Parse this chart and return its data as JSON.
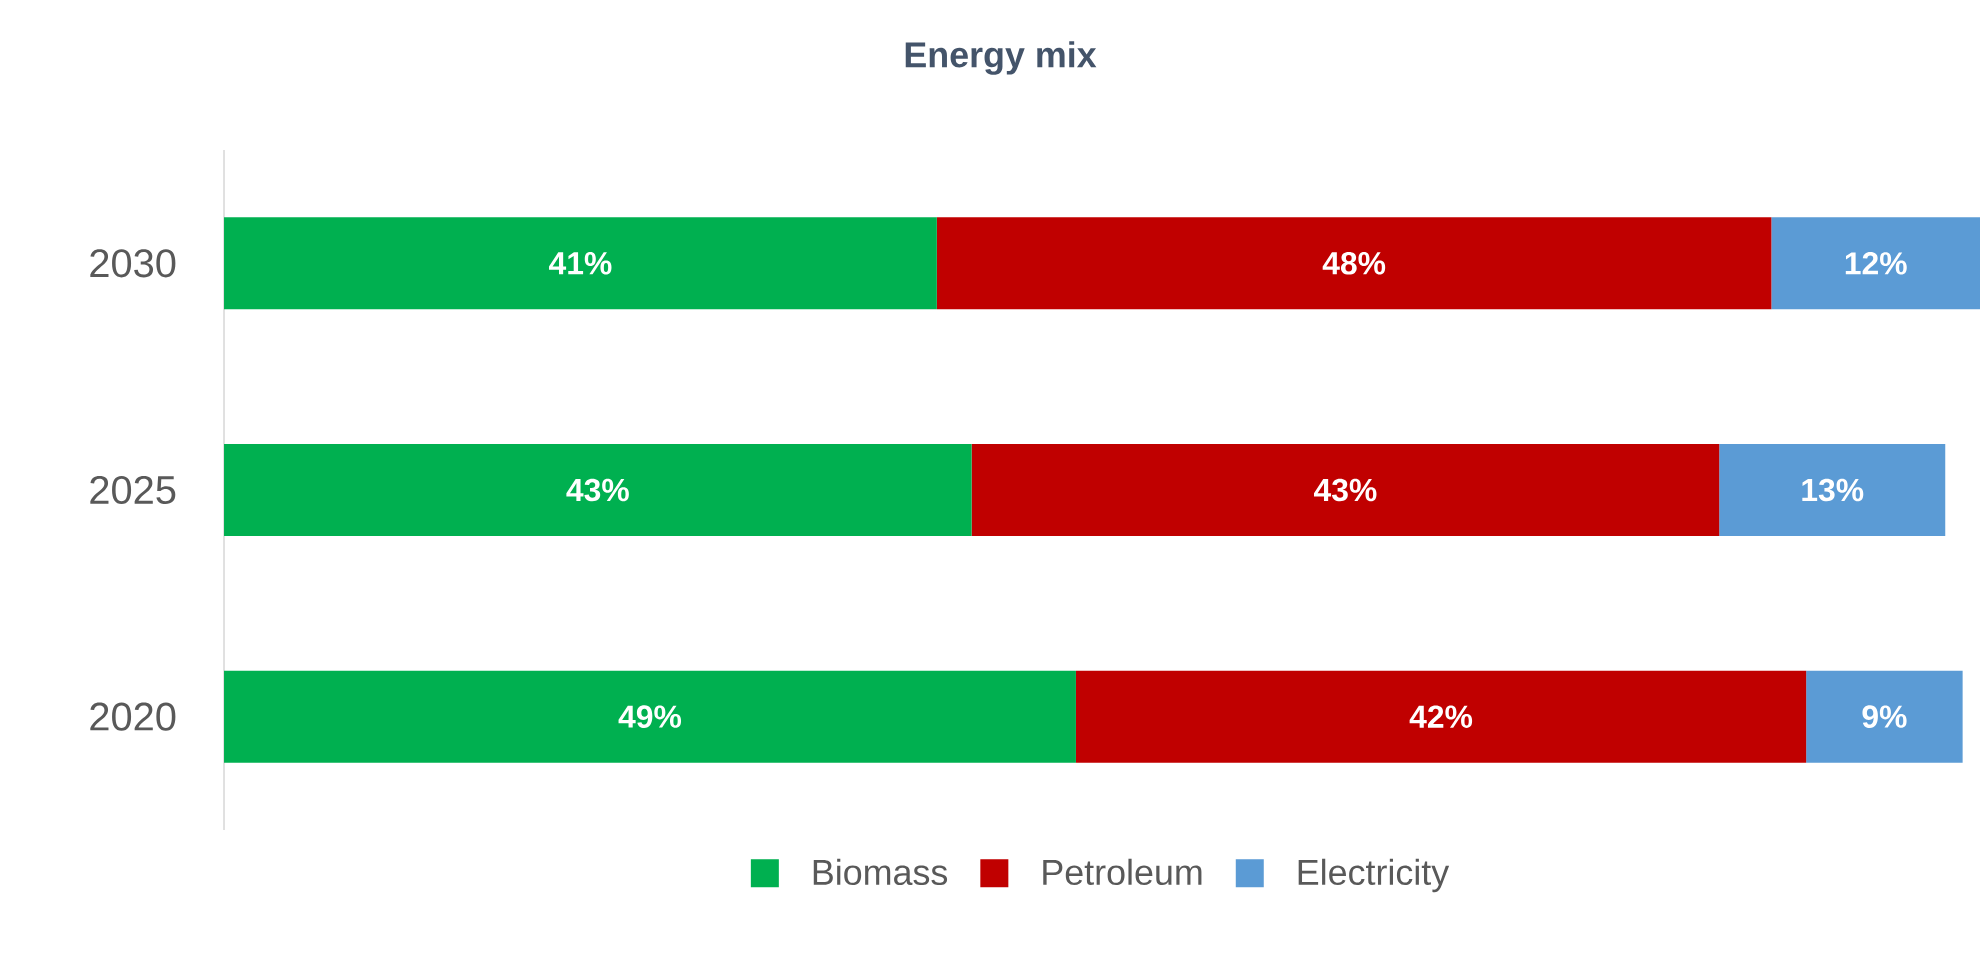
{
  "chart_data": {
    "type": "bar",
    "title": "Energy mix",
    "orientation": "horizontal",
    "stacked": true,
    "legend": "bottom",
    "categories": [
      "2030",
      "2025",
      "2020"
    ],
    "series": [
      {
        "name": "Biomass",
        "color": "#00b050",
        "values": [
          41,
          43,
          49
        ],
        "value_labels": [
          "41%",
          "43%",
          "49%"
        ]
      },
      {
        "name": "Petroleum",
        "color": "#c00000",
        "values": [
          48,
          43,
          42
        ],
        "value_labels": [
          "48%",
          "43%",
          "42%"
        ]
      },
      {
        "name": "Electricity",
        "color": "#5b9bd5",
        "values": [
          12,
          13,
          9
        ],
        "value_labels": [
          "12%",
          "13%",
          "9%"
        ]
      }
    ]
  }
}
